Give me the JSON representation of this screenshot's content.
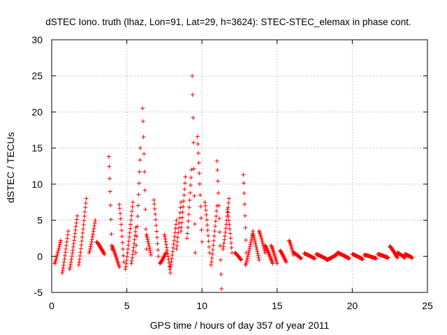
{
  "chart_data": {
    "type": "scatter",
    "title": "dSTEC Iono. truth (lhaz, Lon=91, Lat=29, h=3624): STEC-STEC_elemax in phase cont.",
    "xlabel": "GPS time / hours of day 357 of year 2011",
    "ylabel": "dSTEC  / TECUs",
    "xlim": [
      0,
      25
    ],
    "ylim": [
      -5,
      30
    ],
    "x_ticks": [
      0,
      5,
      10,
      15,
      20,
      25
    ],
    "y_ticks": [
      -5,
      0,
      5,
      10,
      15,
      20,
      25,
      30
    ],
    "grid": true,
    "marker": "plus",
    "marker_color": "#ff0000",
    "arcs": [
      {
        "x_start": 0.2,
        "x_end": 0.6,
        "y_start": -1.0,
        "y_end": 2.2
      },
      {
        "x_start": 0.7,
        "x_end": 1.1,
        "y_start": -2.3,
        "y_end": 3.5
      },
      {
        "x_start": 1.2,
        "x_end": 1.7,
        "y_start": -1.8,
        "y_end": 5.6
      },
      {
        "x_start": 1.8,
        "x_end": 2.3,
        "y_start": -1.2,
        "y_end": 8.0
      },
      {
        "x_start": 2.5,
        "x_end": 2.9,
        "y_start": 0.5,
        "y_end": 5.0
      },
      {
        "x_start": 3.0,
        "x_end": 3.5,
        "y_start": 2.0,
        "y_end": 0.3
      },
      {
        "x_start": 3.8,
        "x_end": 4.0,
        "y_start": 13.8,
        "y_end": 1.0
      },
      {
        "x_start": 4.0,
        "x_end": 4.5,
        "y_start": 1.5,
        "y_end": -1.5
      },
      {
        "x_start": 4.5,
        "x_end": 4.8,
        "y_start": 7.2,
        "y_end": -0.8
      },
      {
        "x_start": 4.9,
        "x_end": 5.4,
        "y_start": -1.8,
        "y_end": 7.5
      },
      {
        "x_start": 5.3,
        "x_end": 5.6,
        "y_start": -1.0,
        "y_end": 4.0
      },
      {
        "x_start": 5.6,
        "x_end": 5.9,
        "y_start": 0.5,
        "y_end": 15.0
      },
      {
        "x_start": 6.05,
        "x_end": 6.3,
        "y_start": 20.5,
        "y_end": 1.0
      },
      {
        "x_start": 6.3,
        "x_end": 6.6,
        "y_start": 3.0,
        "y_end": 0.2
      },
      {
        "x_start": 6.8,
        "x_end": 7.1,
        "y_start": 7.8,
        "y_end": 0.0
      },
      {
        "x_start": 7.2,
        "x_end": 7.6,
        "y_start": -1.0,
        "y_end": 0.5
      },
      {
        "x_start": 7.5,
        "x_end": 7.9,
        "y_start": 3.0,
        "y_end": -2.3
      },
      {
        "x_start": 7.9,
        "x_end": 8.3,
        "y_start": -1.5,
        "y_end": 5.0
      },
      {
        "x_start": 8.3,
        "x_end": 8.6,
        "y_start": 1.0,
        "y_end": 7.5
      },
      {
        "x_start": 8.6,
        "x_end": 8.9,
        "y_start": 3.5,
        "y_end": 11.0
      },
      {
        "x_start": 9.0,
        "x_end": 9.3,
        "y_start": 2.5,
        "y_end": 12.0
      },
      {
        "x_start": 9.35,
        "x_end": 9.55,
        "y_start": 25.0,
        "y_end": 0.5
      },
      {
        "x_start": 9.7,
        "x_end": 10.0,
        "y_start": 16.6,
        "y_end": 2.0
      },
      {
        "x_start": 10.2,
        "x_end": 10.5,
        "y_start": 7.5,
        "y_end": 0.5
      },
      {
        "x_start": 10.6,
        "x_end": 11.0,
        "y_start": -1.2,
        "y_end": 7.0
      },
      {
        "x_start": 11.0,
        "x_end": 11.3,
        "y_start": 13.2,
        "y_end": -4.5
      },
      {
        "x_start": 11.4,
        "x_end": 11.8,
        "y_start": 1.0,
        "y_end": 8.0
      },
      {
        "x_start": 11.7,
        "x_end": 12.0,
        "y_start": 6.5,
        "y_end": 0.5
      },
      {
        "x_start": 12.2,
        "x_end": 12.6,
        "y_start": 0.5,
        "y_end": -0.5
      },
      {
        "x_start": 12.75,
        "x_end": 12.95,
        "y_start": 11.3,
        "y_end": 0.5
      },
      {
        "x_start": 12.9,
        "x_end": 13.4,
        "y_start": -1.2,
        "y_end": 3.5
      },
      {
        "x_start": 13.4,
        "x_end": 13.8,
        "y_start": 3.0,
        "y_end": -0.5
      },
      {
        "x_start": 13.8,
        "x_end": 14.2,
        "y_start": 3.5,
        "y_end": 0.5
      },
      {
        "x_start": 14.2,
        "x_end": 14.7,
        "y_start": 1.5,
        "y_end": -1.0
      },
      {
        "x_start": 14.6,
        "x_end": 15.0,
        "y_start": 1.5,
        "y_end": -1.0
      },
      {
        "x_start": 15.2,
        "x_end": 15.6,
        "y_start": 0.8,
        "y_end": -0.8
      },
      {
        "x_start": 15.8,
        "x_end": 16.1,
        "y_start": 2.2,
        "y_end": 0.2
      },
      {
        "x_start": 16.1,
        "x_end": 16.6,
        "y_start": 0.5,
        "y_end": -0.3
      },
      {
        "x_start": 16.8,
        "x_end": 17.5,
        "y_start": 0.4,
        "y_end": -0.3
      },
      {
        "x_start": 17.6,
        "x_end": 18.3,
        "y_start": 0.3,
        "y_end": -0.4
      },
      {
        "x_start": 18.3,
        "x_end": 19.0,
        "y_start": -0.5,
        "y_end": 0.3
      },
      {
        "x_start": 19.0,
        "x_end": 19.8,
        "y_start": 0.5,
        "y_end": -0.3
      },
      {
        "x_start": 20.0,
        "x_end": 20.7,
        "y_start": 0.3,
        "y_end": -0.4
      },
      {
        "x_start": 20.8,
        "x_end": 21.6,
        "y_start": 0.2,
        "y_end": -0.3
      },
      {
        "x_start": 21.7,
        "x_end": 22.4,
        "y_start": 0.3,
        "y_end": -0.2
      },
      {
        "x_start": 22.5,
        "x_end": 23.0,
        "y_start": 1.4,
        "y_end": -0.2
      },
      {
        "x_start": 23.0,
        "x_end": 23.5,
        "y_start": 0.5,
        "y_end": -0.2
      },
      {
        "x_start": 23.5,
        "x_end": 24.0,
        "y_start": 0.3,
        "y_end": -0.2
      }
    ]
  }
}
